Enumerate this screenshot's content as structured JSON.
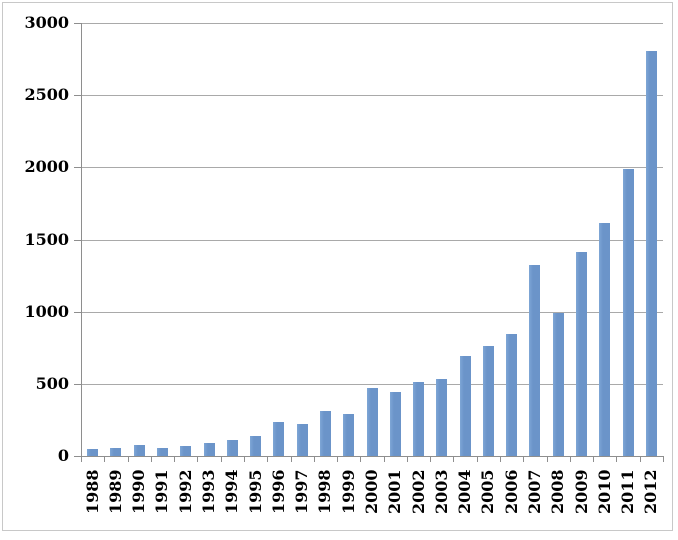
{
  "chart_data": {
    "type": "bar",
    "title": "",
    "xlabel": "",
    "ylabel": "",
    "categories": [
      "1988",
      "1989",
      "1990",
      "1991",
      "1992",
      "1993",
      "1994",
      "1995",
      "1996",
      "1997",
      "1998",
      "1999",
      "2000",
      "2001",
      "2002",
      "2003",
      "2004",
      "2005",
      "2006",
      "2007",
      "2008",
      "2009",
      "2010",
      "2011",
      "2012"
    ],
    "values": [
      50,
      55,
      75,
      55,
      70,
      90,
      110,
      140,
      235,
      220,
      310,
      290,
      470,
      440,
      510,
      535,
      690,
      760,
      845,
      1320,
      990,
      1410,
      1615,
      1985,
      2805
    ],
    "yticks": [
      0,
      500,
      1000,
      1500,
      2000,
      2500,
      3000
    ],
    "ylim": [
      0,
      3000
    ],
    "grid": true,
    "legend": "none",
    "x_label_rotation_degrees": 90,
    "colors": {
      "bar": "#6B94C9",
      "bar_edge_highlight": "#7EA6D6",
      "gridline": "#A9A9A9",
      "axis": "#8E8E8E",
      "frame_border": "#C8C8C8",
      "background": "#FFFFFF",
      "text": "#000000"
    }
  }
}
